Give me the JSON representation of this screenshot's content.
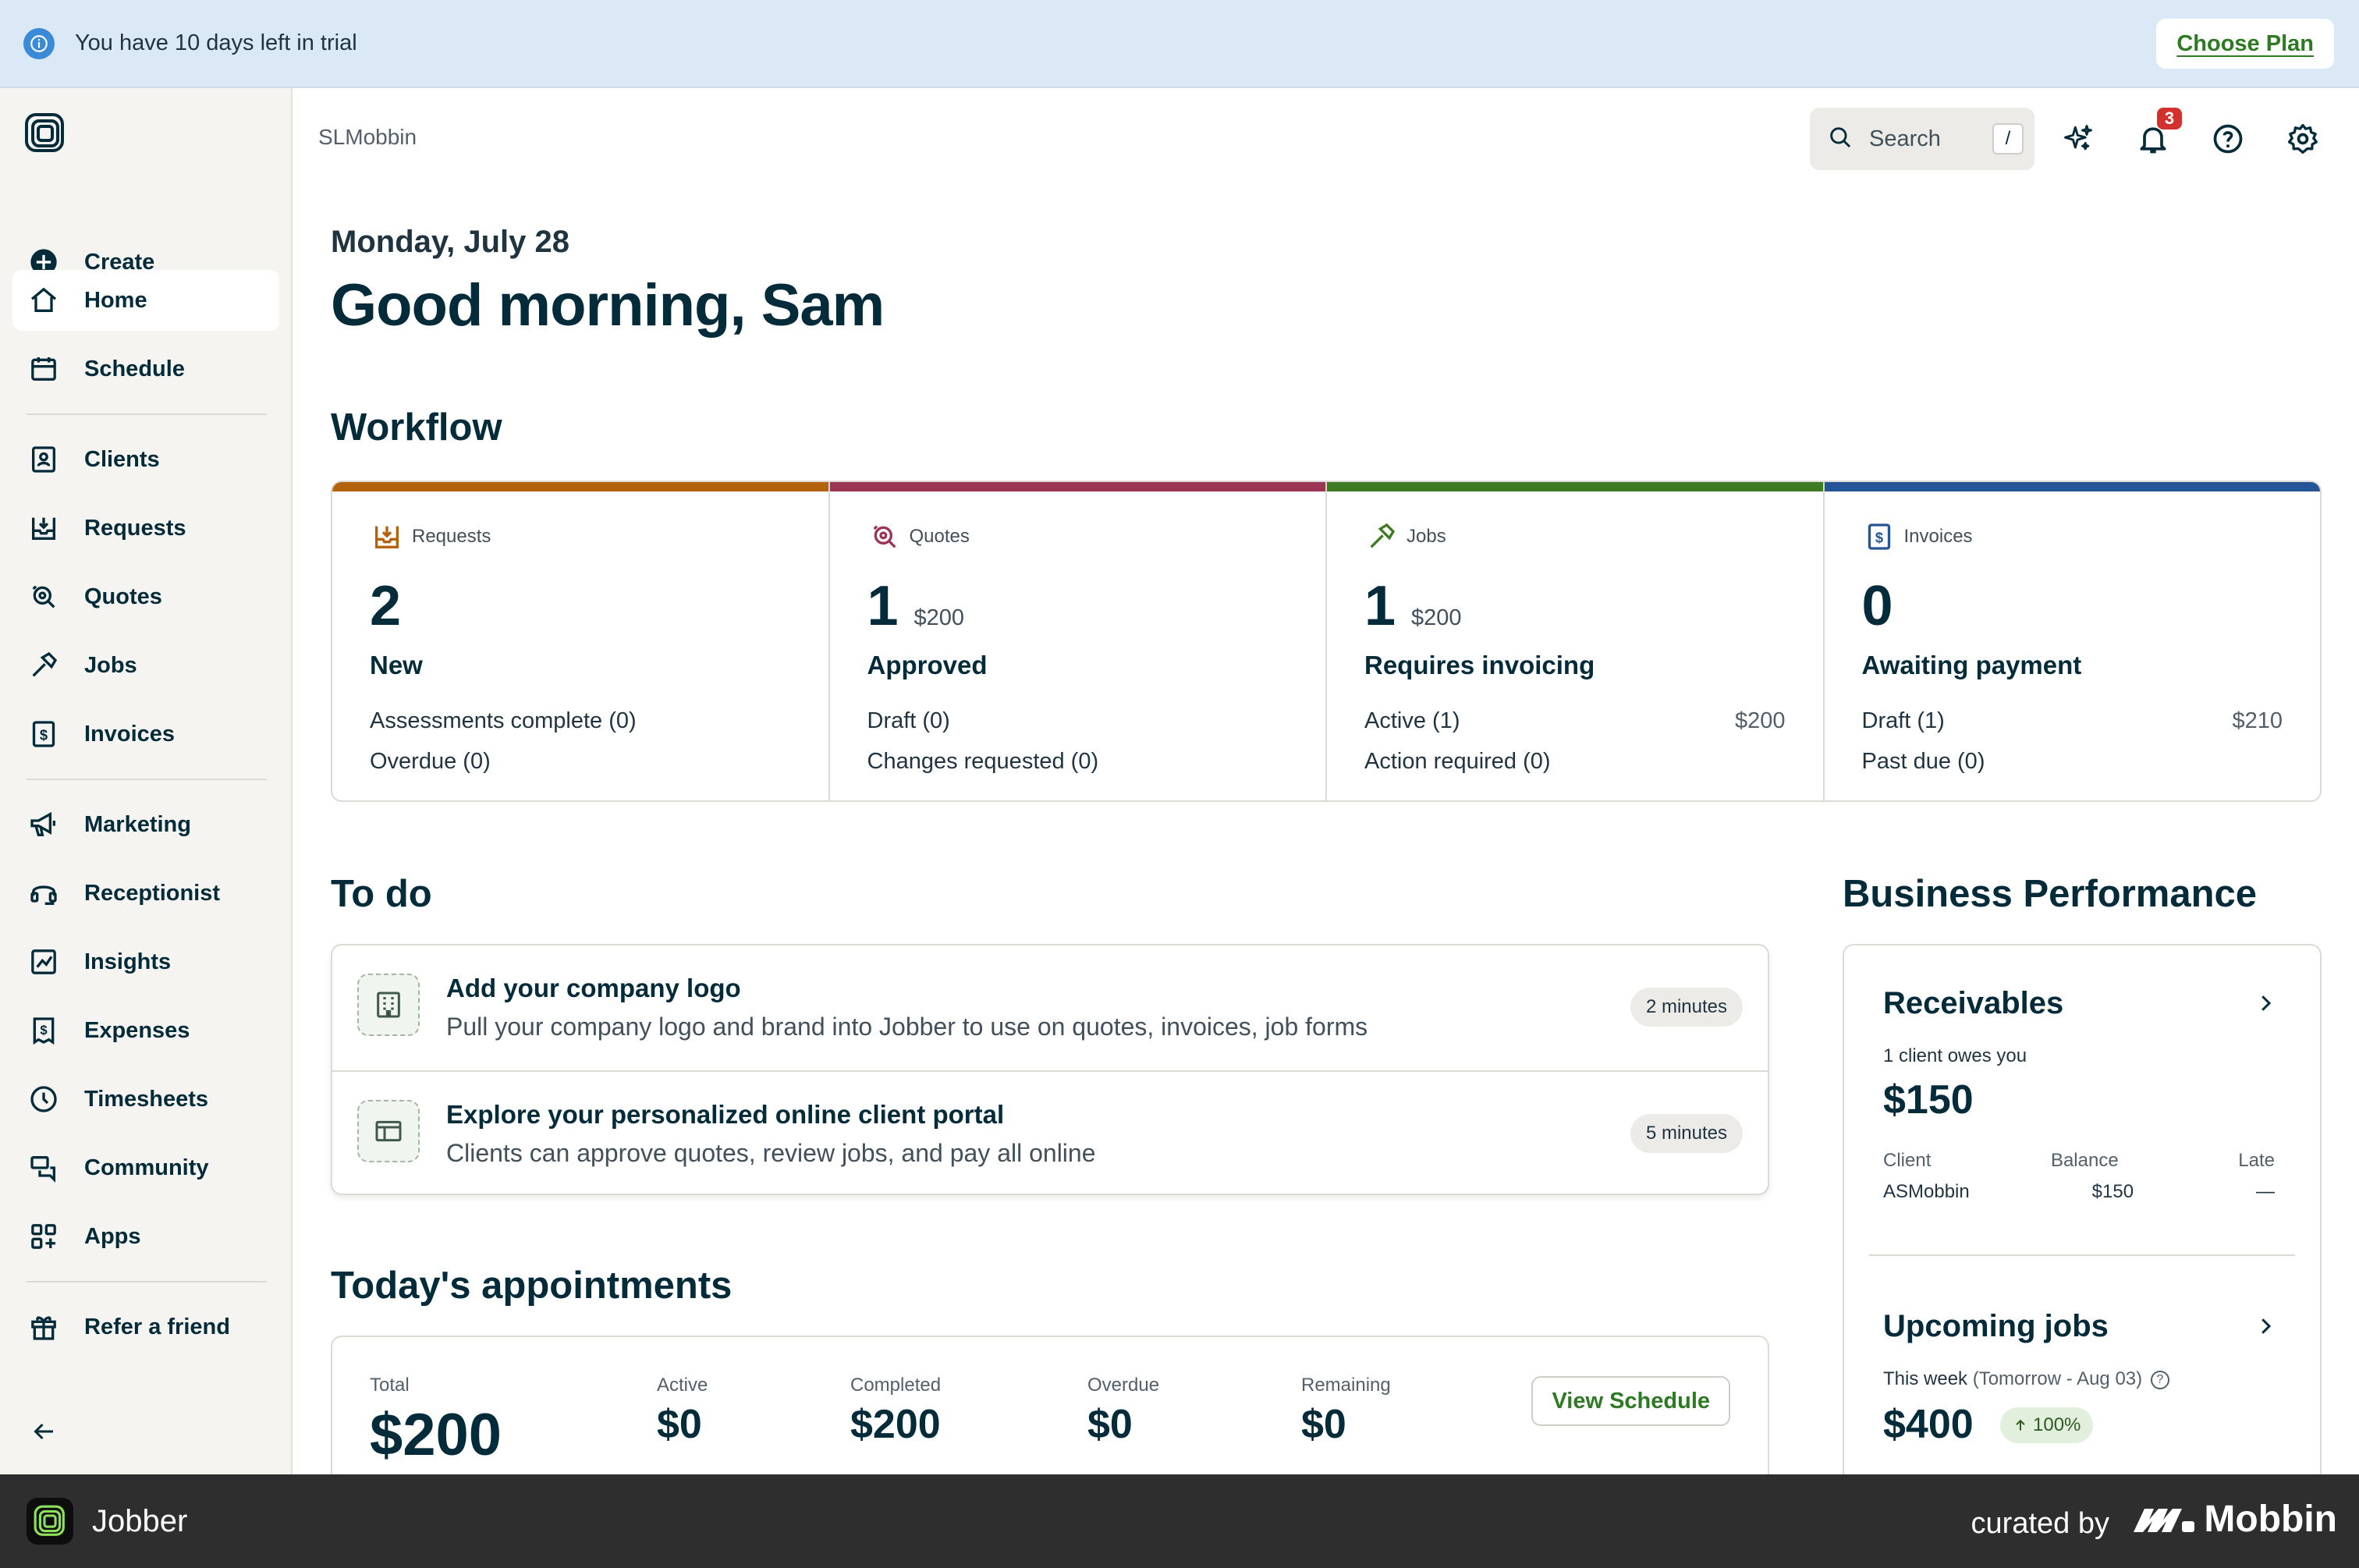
{
  "banner": {
    "text": "You have 10 days left in trial",
    "cta": "Choose Plan"
  },
  "sidebar": {
    "items": [
      {
        "label": "Create",
        "icon": "plus-circle-icon"
      },
      {
        "label": "Home",
        "icon": "home-icon",
        "active": true
      },
      {
        "label": "Schedule",
        "icon": "calendar-icon"
      },
      {
        "label": "Clients",
        "icon": "clients-icon"
      },
      {
        "label": "Requests",
        "icon": "inbox-icon"
      },
      {
        "label": "Quotes",
        "icon": "quote-icon"
      },
      {
        "label": "Jobs",
        "icon": "hammer-icon"
      },
      {
        "label": "Invoices",
        "icon": "invoice-icon"
      },
      {
        "label": "Marketing",
        "icon": "megaphone-icon"
      },
      {
        "label": "Receptionist",
        "icon": "headset-icon"
      },
      {
        "label": "Insights",
        "icon": "chart-icon"
      },
      {
        "label": "Expenses",
        "icon": "receipt-icon"
      },
      {
        "label": "Timesheets",
        "icon": "clock-icon"
      },
      {
        "label": "Community",
        "icon": "chat-icon"
      },
      {
        "label": "Apps",
        "icon": "apps-icon"
      },
      {
        "label": "Refer a friend",
        "icon": "gift-icon"
      }
    ]
  },
  "header": {
    "breadcrumb": "SLMobbin",
    "search_label": "Search",
    "search_shortcut": "/",
    "notification_count": "3"
  },
  "greeting": {
    "date": "Monday, July 28",
    "message": "Good morning, Sam"
  },
  "workflow": {
    "title": "Workflow",
    "cards": [
      {
        "title": "Requests",
        "count": "2",
        "amount": "",
        "status": "New",
        "color": "#b5620e",
        "rows": [
          {
            "label": "Assessments complete (0)",
            "value": ""
          },
          {
            "label": "Overdue (0)",
            "value": ""
          }
        ]
      },
      {
        "title": "Quotes",
        "count": "1",
        "amount": "$200",
        "status": "Approved",
        "color": "#9c3553",
        "rows": [
          {
            "label": "Draft (0)",
            "value": ""
          },
          {
            "label": "Changes requested (0)",
            "value": ""
          }
        ]
      },
      {
        "title": "Jobs",
        "count": "1",
        "amount": "$200",
        "status": "Requires invoicing",
        "color": "#3d7b22",
        "rows": [
          {
            "label": "Active (1)",
            "value": "$200"
          },
          {
            "label": "Action required (0)",
            "value": ""
          }
        ]
      },
      {
        "title": "Invoices",
        "count": "0",
        "amount": "",
        "status": "Awaiting payment",
        "color": "#235597",
        "rows": [
          {
            "label": "Draft (1)",
            "value": "$210"
          },
          {
            "label": "Past due (0)",
            "value": ""
          }
        ]
      }
    ]
  },
  "todo": {
    "title": "To do",
    "items": [
      {
        "title": "Add your company logo",
        "description": "Pull your company logo and brand into Jobber to use on quotes, invoices, job forms",
        "time": "2 minutes"
      },
      {
        "title": "Explore your personalized online client portal",
        "description": "Clients can approve quotes, review jobs, and pay all online",
        "time": "5 minutes"
      }
    ]
  },
  "appointments": {
    "title": "Today's appointments",
    "stats": [
      {
        "label": "Total",
        "value": "$200"
      },
      {
        "label": "Active",
        "value": "$0"
      },
      {
        "label": "Completed",
        "value": "$200"
      },
      {
        "label": "Overdue",
        "value": "$0"
      },
      {
        "label": "Remaining",
        "value": "$0"
      }
    ],
    "button": "View Schedule"
  },
  "business_performance": {
    "title": "Business Performance",
    "receivables": {
      "title": "Receivables",
      "subtitle": "1 client owes you",
      "amount": "$150",
      "headers": [
        "Client",
        "Balance",
        "Late"
      ],
      "row": [
        "ASMobbin",
        "$150",
        "—"
      ]
    },
    "upcoming": {
      "title": "Upcoming jobs",
      "subtitle": "This week",
      "range": "(Tomorrow - Aug 03)",
      "amount": "$400",
      "change": "100%"
    }
  },
  "footer": {
    "app_name": "Jobber",
    "curated": "curated by",
    "brand": "Mobbin"
  }
}
